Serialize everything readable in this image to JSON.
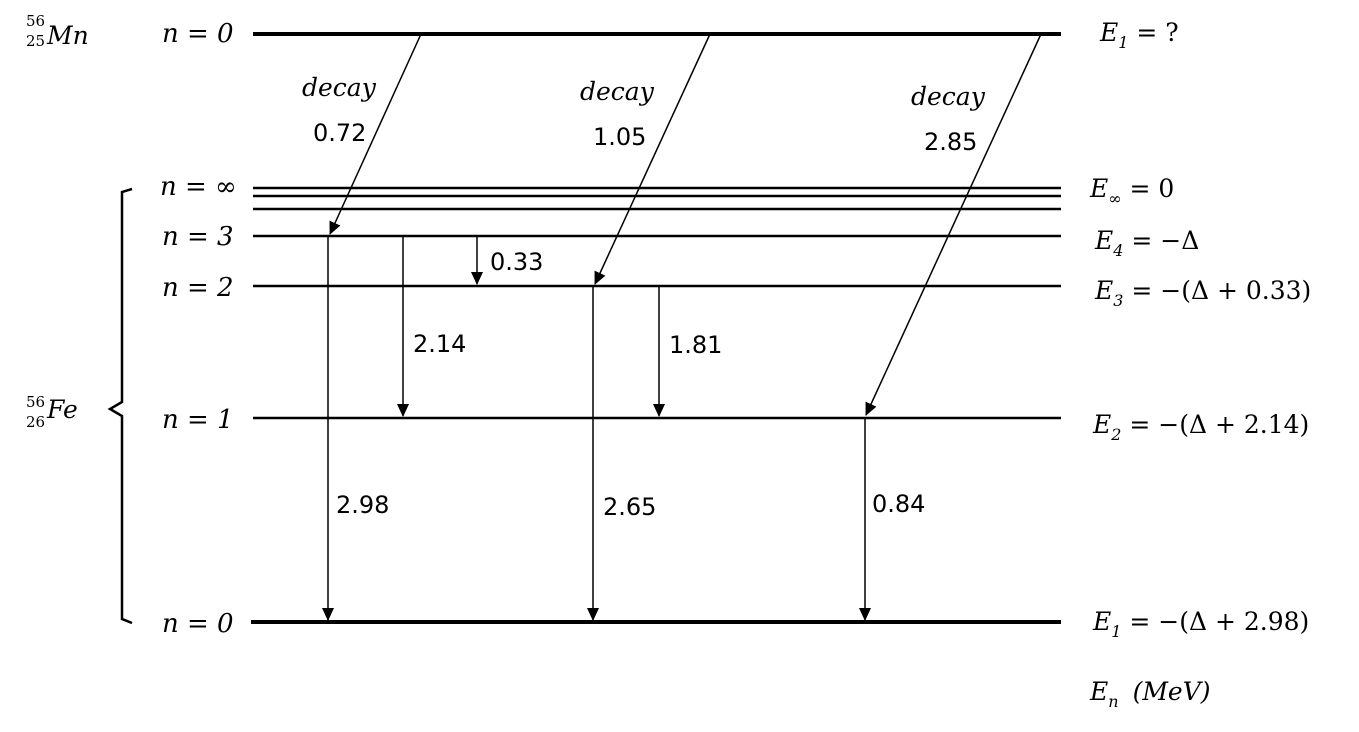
{
  "nuclides": {
    "parent": {
      "mass": "56",
      "atomic": "25",
      "symbol": "Mn"
    },
    "daughter": {
      "mass": "56",
      "atomic": "26",
      "symbol": "Fe"
    }
  },
  "levels": {
    "mn_n0": {
      "n_label": "n = 0",
      "energy_label": "E",
      "energy_sub": "1",
      "energy_value": " = ?"
    },
    "fe_ninf": {
      "n_label": "n = ∞",
      "energy_label": "E",
      "energy_sub": "∞",
      "energy_value": " = 0"
    },
    "fe_n3": {
      "n_label": "n = 3",
      "energy_label": "E",
      "energy_sub": "4",
      "energy_value": " = −Δ"
    },
    "fe_n2": {
      "n_label": "n = 2",
      "energy_label": "E",
      "energy_sub": "3",
      "energy_value": " = −(Δ + 0.33)"
    },
    "fe_n1": {
      "n_label": "n = 1",
      "energy_label": "E",
      "energy_sub": "2",
      "energy_value": " = −(Δ + 2.14)"
    },
    "fe_n0": {
      "n_label": "n = 0",
      "energy_label": "E",
      "energy_sub": "1",
      "energy_value": " = −(Δ + 2.98)"
    }
  },
  "decays": [
    {
      "label": "decay",
      "value": "0.72"
    },
    {
      "label": "decay",
      "value": "1.05"
    },
    {
      "label": "decay",
      "value": "2.85"
    }
  ],
  "transitions": [
    {
      "value": "0.33"
    },
    {
      "value": "2.14"
    },
    {
      "value": "1.81"
    },
    {
      "value": "2.98"
    },
    {
      "value": "2.65"
    },
    {
      "value": "0.84"
    }
  ],
  "units_label": {
    "symbol": "E",
    "sub": "n",
    "unit": "(MeV)"
  }
}
